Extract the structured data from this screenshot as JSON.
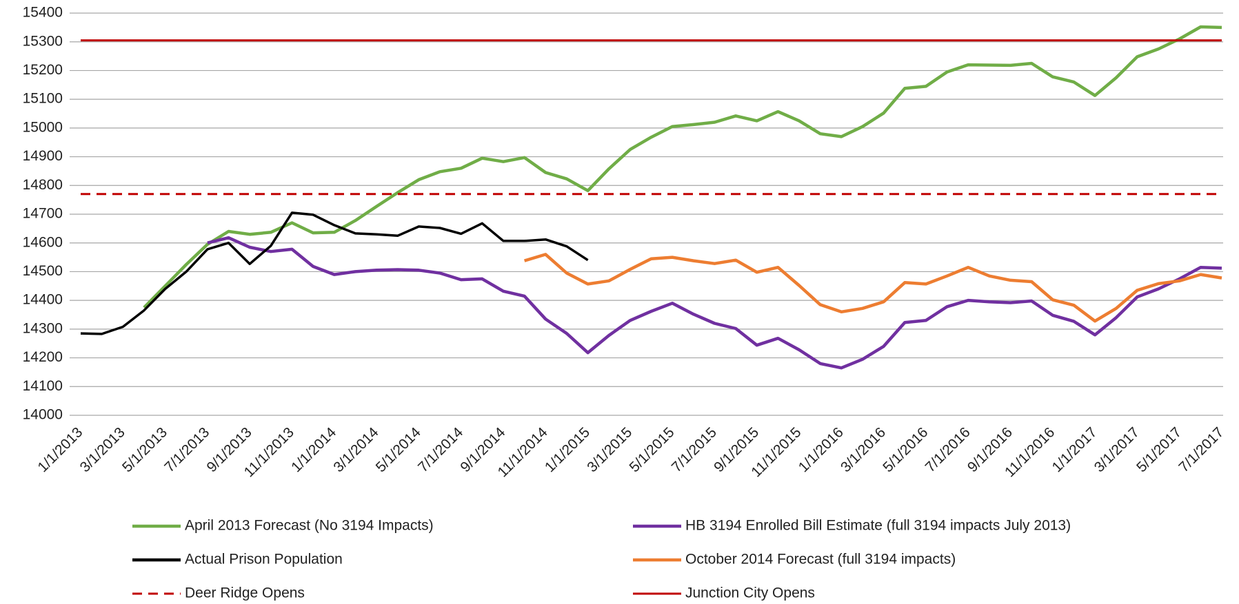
{
  "chart_data": {
    "type": "line",
    "categories": [
      "1/1/2013",
      null,
      "3/1/2013",
      null,
      "5/1/2013",
      null,
      "7/1/2013",
      null,
      "9/1/2013",
      null,
      "11/1/2013",
      null,
      "1/1/2014",
      null,
      "3/1/2014",
      null,
      "5/1/2014",
      null,
      "7/1/2014",
      null,
      "9/1/2014",
      null,
      "11/1/2014",
      null,
      "1/1/2015",
      null,
      "3/1/2015",
      null,
      "5/1/2015",
      null,
      "7/1/2015",
      null,
      "9/1/2015",
      null,
      "11/1/2015",
      null,
      "1/1/2016",
      null,
      "3/1/2016",
      null,
      "5/1/2016",
      null,
      "7/1/2016",
      null,
      "9/1/2016",
      null,
      "11/1/2016",
      null,
      "1/1/2017",
      null,
      "3/1/2017",
      null,
      "5/1/2017",
      null,
      "7/1/2017"
    ],
    "ylim": [
      14000,
      15400
    ],
    "yticks": [
      14000,
      14100,
      14200,
      14300,
      14400,
      14500,
      14600,
      14700,
      14800,
      14900,
      15000,
      15100,
      15200,
      15300,
      15400
    ],
    "grid": true,
    "legend": "bottom",
    "series": [
      {
        "name": "April 2013 Forecast (No 3194 Impacts)",
        "color": "#70ad47",
        "values": [
          null,
          null,
          null,
          14375,
          14450,
          14525,
          14595,
          14640,
          14630,
          14637,
          14670,
          14635,
          14637,
          14678,
          14727,
          14775,
          14820,
          14848,
          14860,
          14895,
          14883,
          14897,
          14845,
          14823,
          14782,
          14858,
          14925,
          14968,
          15005,
          15012,
          15020,
          15042,
          15025,
          15057,
          15025,
          14980,
          14970,
          15005,
          15052,
          15138,
          15145,
          15195,
          15220,
          15219,
          15218,
          15225,
          15178,
          15160,
          15113,
          15175,
          15248,
          15275,
          15310,
          15352,
          15350
        ]
      },
      {
        "name": "HB 3194 Enrolled Bill Estimate (full 3194 impacts July 2013)",
        "color": "#7030a0",
        "values": [
          null,
          null,
          null,
          null,
          null,
          null,
          14600,
          14618,
          14585,
          14570,
          14578,
          14518,
          14490,
          14500,
          14505,
          14507,
          14505,
          14495,
          14472,
          14475,
          14432,
          14415,
          14335,
          14285,
          14218,
          14278,
          14330,
          14362,
          14390,
          14352,
          14320,
          14302,
          14244,
          14268,
          14228,
          14180,
          14165,
          14195,
          14240,
          14323,
          14330,
          14378,
          14400,
          14395,
          14392,
          14398,
          14348,
          14327,
          14280,
          14340,
          14412,
          14440,
          14475,
          14515,
          14512
        ]
      },
      {
        "name": "Actual Prison Population",
        "color": "#000000",
        "values": [
          14285,
          14283,
          14308,
          14365,
          14440,
          14500,
          14578,
          14600,
          14527,
          14590,
          14705,
          14698,
          14662,
          14633,
          14630,
          14625,
          14657,
          14652,
          14632,
          14668,
          14607,
          14607,
          14612,
          14588,
          14540,
          null,
          null,
          null,
          null,
          null,
          null,
          null,
          null,
          null,
          null,
          null,
          null,
          null,
          null,
          null,
          null,
          null,
          null,
          null,
          null,
          null,
          null,
          null,
          null,
          null,
          null,
          null,
          null,
          null,
          null
        ]
      },
      {
        "name": "October 2014 Forecast (full 3194 impacts)",
        "color": "#ed7d31",
        "values": [
          null,
          null,
          null,
          null,
          null,
          null,
          null,
          null,
          null,
          null,
          null,
          null,
          null,
          null,
          null,
          null,
          null,
          null,
          null,
          null,
          null,
          14538,
          14560,
          14495,
          14457,
          14468,
          14508,
          14545,
          14550,
          14538,
          14528,
          14540,
          14498,
          14515,
          14452,
          14385,
          14360,
          14372,
          14395,
          14462,
          14457,
          14485,
          14515,
          14485,
          14470,
          14465,
          14402,
          14383,
          14328,
          14372,
          14435,
          14458,
          14468,
          14490,
          14478
        ]
      },
      {
        "name": "Deer Ridge Opens",
        "color": "#c00000",
        "dashed": true,
        "values": [
          14770,
          14770,
          14770,
          14770,
          14770,
          14770,
          14770,
          14770,
          14770,
          14770,
          14770,
          14770,
          14770,
          14770,
          14770,
          14770,
          14770,
          14770,
          14770,
          14770,
          14770,
          14770,
          14770,
          14770,
          14770,
          14770,
          14770,
          14770,
          14770,
          14770,
          14770,
          14770,
          14770,
          14770,
          14770,
          14770,
          14770,
          14770,
          14770,
          14770,
          14770,
          14770,
          14770,
          14770,
          14770,
          14770,
          14770,
          14770,
          14770,
          14770,
          14770,
          14770,
          14770,
          14770,
          14770
        ]
      },
      {
        "name": "Junction City Opens",
        "color": "#c00000",
        "values": [
          15305,
          15305,
          15305,
          15305,
          15305,
          15305,
          15305,
          15305,
          15305,
          15305,
          15305,
          15305,
          15305,
          15305,
          15305,
          15305,
          15305,
          15305,
          15305,
          15305,
          15305,
          15305,
          15305,
          15305,
          15305,
          15305,
          15305,
          15305,
          15305,
          15305,
          15305,
          15305,
          15305,
          15305,
          15305,
          15305,
          15305,
          15305,
          15305,
          15305,
          15305,
          15305,
          15305,
          15305,
          15305,
          15305,
          15305,
          15305,
          15305,
          15305,
          15305,
          15305,
          15305,
          15305,
          15305
        ]
      }
    ]
  }
}
